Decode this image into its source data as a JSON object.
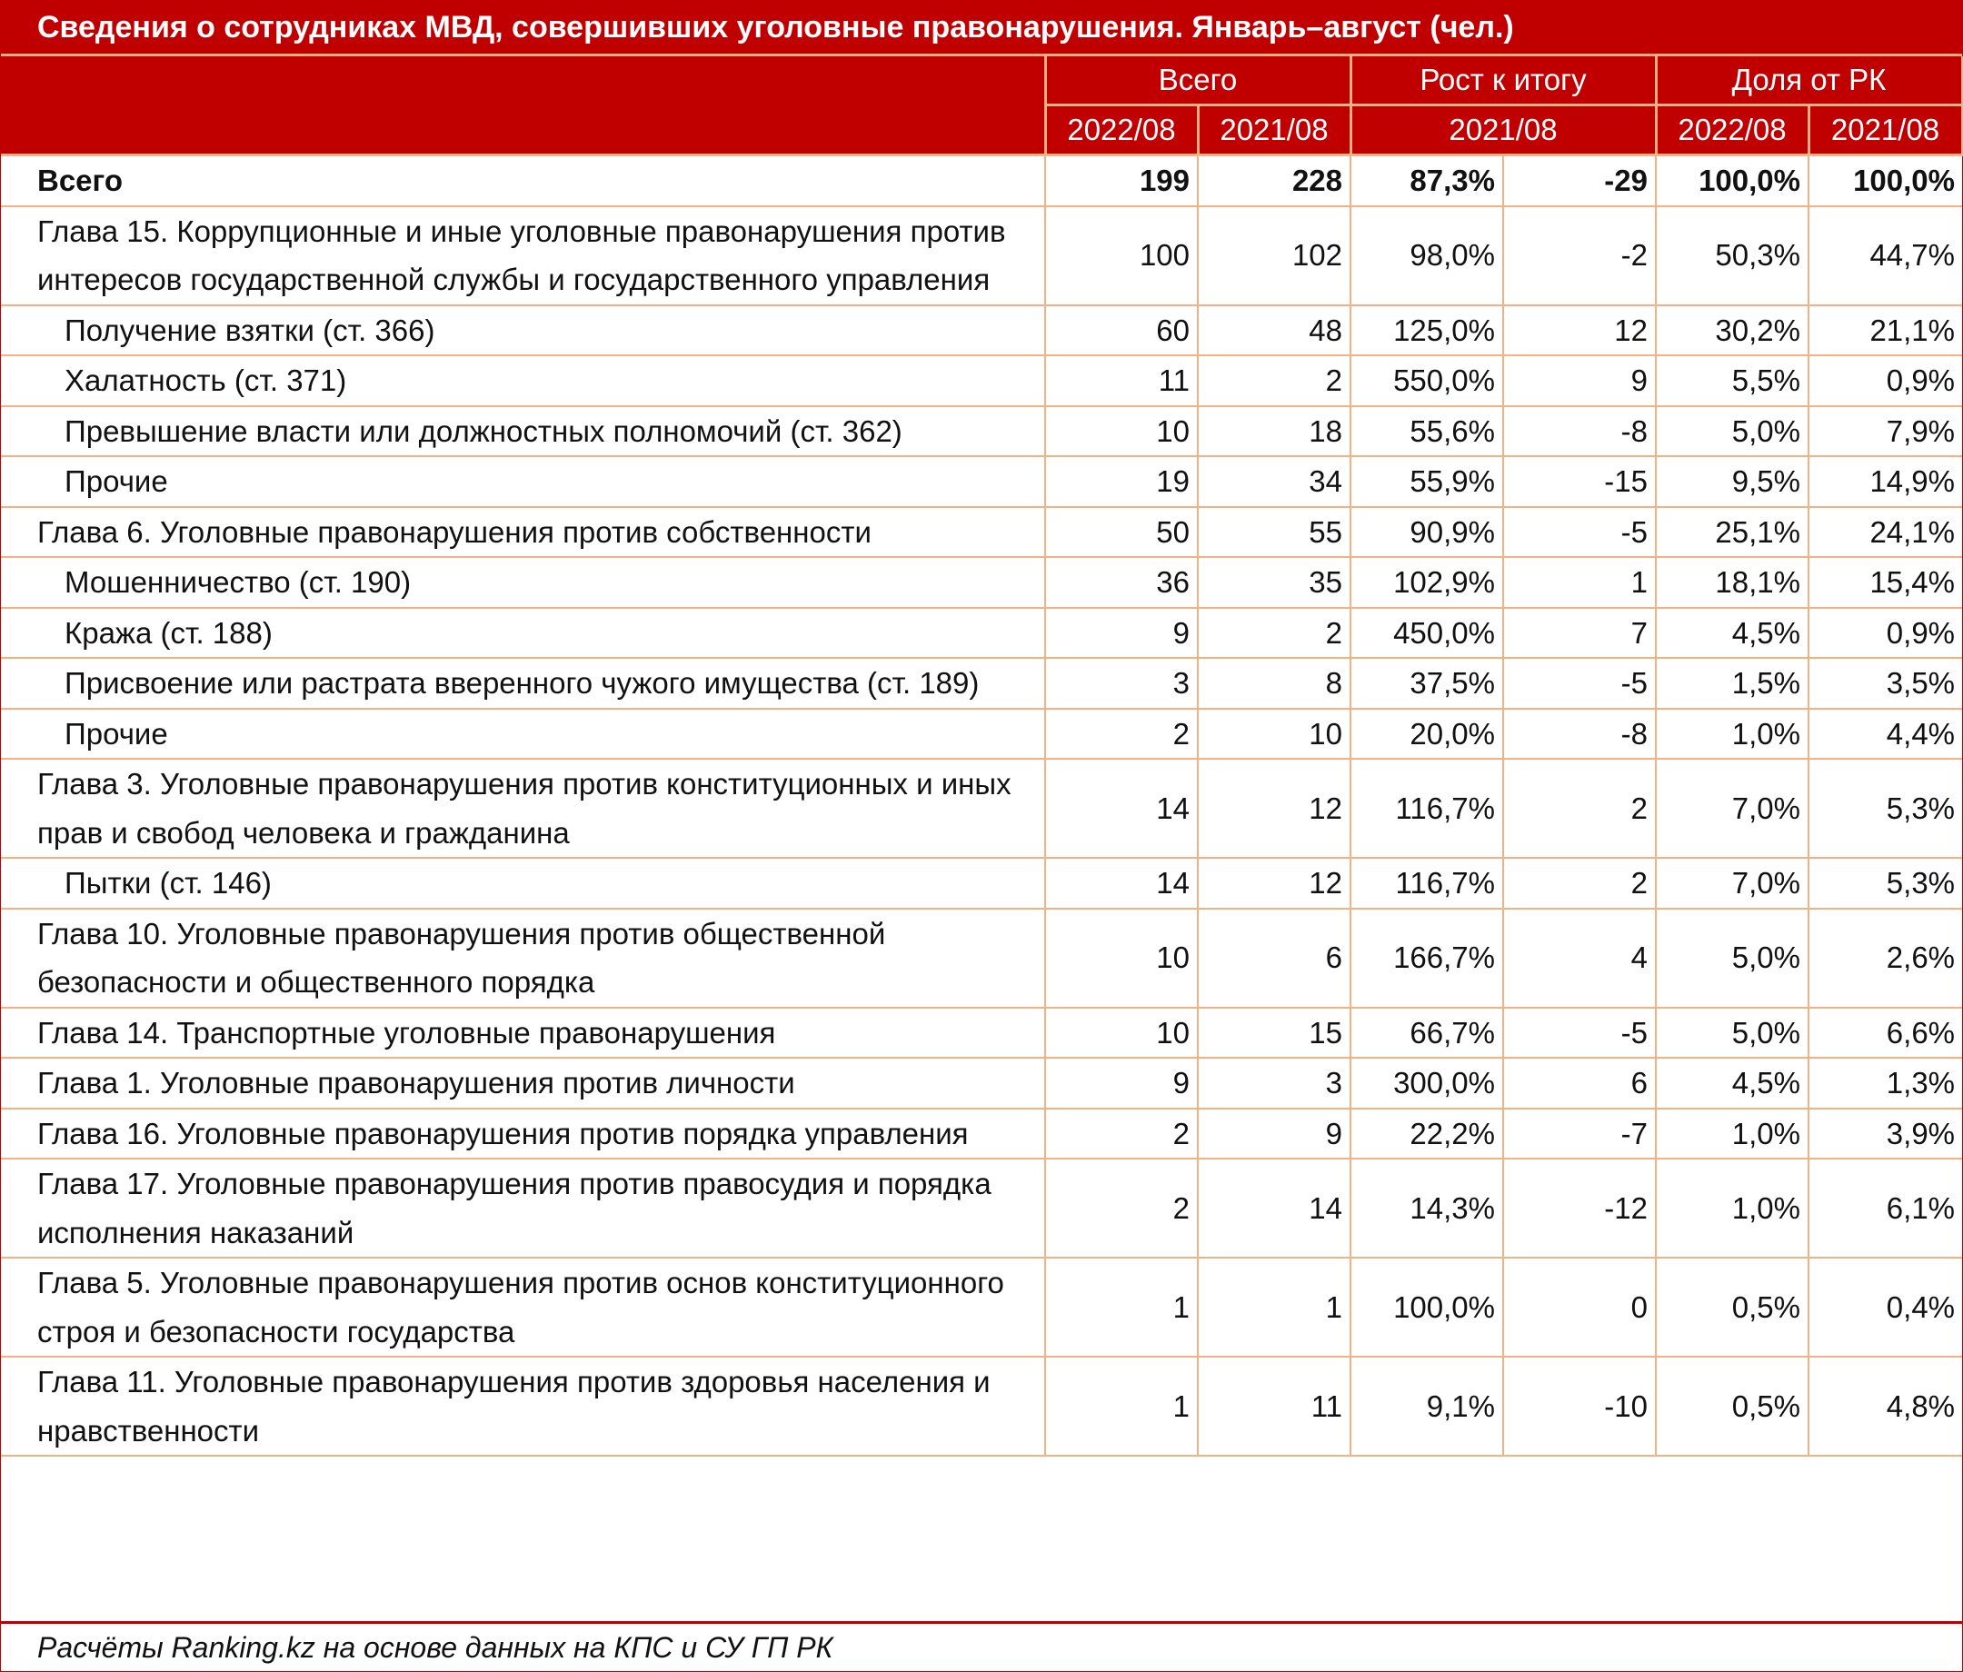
{
  "title": "Сведения о сотрудниках МВД, совершивших уголовные правонарушения. Январь–август (чел.)",
  "source": "Расчёты Ranking.kz на основе данных на КПС и СУ ГП РК",
  "colors": {
    "header_bg": "#c00000",
    "header_text": "#ffffff",
    "grid": "#f4b183"
  },
  "chart_data": {
    "type": "table",
    "header_groups": [
      "Всего",
      "Рост к итогу",
      "Доля от РК"
    ],
    "subheaders": [
      "2022/08",
      "2021/08",
      "2021/08",
      "2022/08",
      "2021/08"
    ],
    "rows": [
      {
        "label": "Всего",
        "level": 0,
        "bold": true,
        "values": [
          "199",
          "228",
          "87,3%",
          "-29",
          "100,0%",
          "100,0%"
        ]
      },
      {
        "label": "Глава 15. Коррупционные и иные уголовные правонарушения против интересов государственной службы и государственного управления",
        "level": 0,
        "values": [
          "100",
          "102",
          "98,0%",
          "-2",
          "50,3%",
          "44,7%"
        ]
      },
      {
        "label": "Получение взятки (ст. 366)",
        "level": 1,
        "values": [
          "60",
          "48",
          "125,0%",
          "12",
          "30,2%",
          "21,1%"
        ]
      },
      {
        "label": "Халатность (ст. 371)",
        "level": 1,
        "values": [
          "11",
          "2",
          "550,0%",
          "9",
          "5,5%",
          "0,9%"
        ]
      },
      {
        "label": "Превышение власти или должностных полномочий (ст. 362)",
        "level": 1,
        "values": [
          "10",
          "18",
          "55,6%",
          "-8",
          "5,0%",
          "7,9%"
        ]
      },
      {
        "label": "Прочие",
        "level": 1,
        "values": [
          "19",
          "34",
          "55,9%",
          "-15",
          "9,5%",
          "14,9%"
        ]
      },
      {
        "label": "Глава 6. Уголовные правонарушения против собственности",
        "level": 0,
        "values": [
          "50",
          "55",
          "90,9%",
          "-5",
          "25,1%",
          "24,1%"
        ]
      },
      {
        "label": "Мошенничество (ст. 190)",
        "level": 1,
        "values": [
          "36",
          "35",
          "102,9%",
          "1",
          "18,1%",
          "15,4%"
        ]
      },
      {
        "label": "Кража (ст. 188)",
        "level": 1,
        "values": [
          "9",
          "2",
          "450,0%",
          "7",
          "4,5%",
          "0,9%"
        ]
      },
      {
        "label": "Присвоение или растрата вверенного чужого имущества (ст. 189)",
        "level": 1,
        "values": [
          "3",
          "8",
          "37,5%",
          "-5",
          "1,5%",
          "3,5%"
        ]
      },
      {
        "label": "Прочие",
        "level": 1,
        "values": [
          "2",
          "10",
          "20,0%",
          "-8",
          "1,0%",
          "4,4%"
        ]
      },
      {
        "label": "Глава 3. Уголовные правонарушения против конституционных и иных прав и свобод человека и гражданина",
        "level": 0,
        "values": [
          "14",
          "12",
          "116,7%",
          "2",
          "7,0%",
          "5,3%"
        ]
      },
      {
        "label": "Пытки (ст. 146)",
        "level": 1,
        "values": [
          "14",
          "12",
          "116,7%",
          "2",
          "7,0%",
          "5,3%"
        ]
      },
      {
        "label": "Глава 10. Уголовные правонарушения против общественной безопасности и общественного порядка",
        "level": 0,
        "values": [
          "10",
          "6",
          "166,7%",
          "4",
          "5,0%",
          "2,6%"
        ]
      },
      {
        "label": "Глава 14. Транспортные уголовные правонарушения",
        "level": 0,
        "values": [
          "10",
          "15",
          "66,7%",
          "-5",
          "5,0%",
          "6,6%"
        ]
      },
      {
        "label": "Глава 1. Уголовные правонарушения против личности",
        "level": 0,
        "values": [
          "9",
          "3",
          "300,0%",
          "6",
          "4,5%",
          "1,3%"
        ]
      },
      {
        "label": "Глава 16. Уголовные правонарушения против порядка управления",
        "level": 0,
        "values": [
          "2",
          "9",
          "22,2%",
          "-7",
          "1,0%",
          "3,9%"
        ]
      },
      {
        "label": "Глава 17. Уголовные правонарушения против правосудия и порядка исполнения наказаний",
        "level": 0,
        "values": [
          "2",
          "14",
          "14,3%",
          "-12",
          "1,0%",
          "6,1%"
        ]
      },
      {
        "label": "Глава 5. Уголовные правонарушения против основ конституционного строя и безопасности государства",
        "level": 0,
        "values": [
          "1",
          "1",
          "100,0%",
          "0",
          "0,5%",
          "0,4%"
        ]
      },
      {
        "label": "Глава 11. Уголовные правонарушения против здоровья населения и нравственности",
        "level": 0,
        "values": [
          "1",
          "11",
          "9,1%",
          "-10",
          "0,5%",
          "4,8%"
        ]
      }
    ]
  }
}
